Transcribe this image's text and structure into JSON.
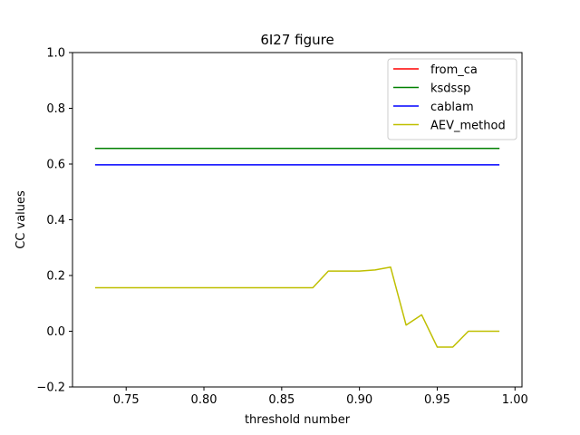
{
  "chart_data": {
    "type": "line",
    "title": "6I27 figure",
    "xlabel": "threshold number",
    "ylabel": "CC values",
    "xlim": [
      0.7155,
      1.0045
    ],
    "ylim": [
      -0.2,
      1.0
    ],
    "xticks": [
      0.75,
      0.8,
      0.85,
      0.9,
      0.95,
      1.0
    ],
    "xtick_labels": [
      "0.75",
      "0.80",
      "0.85",
      "0.90",
      "0.95",
      "1.00"
    ],
    "yticks": [
      -0.2,
      0.0,
      0.2,
      0.4,
      0.6,
      0.8,
      1.0
    ],
    "ytick_labels": [
      "−0.2",
      "0.0",
      "0.2",
      "0.4",
      "0.6",
      "0.8",
      "1.0"
    ],
    "grid": false,
    "legend_position": "top-right",
    "x": [
      0.73,
      0.74,
      0.75,
      0.76,
      0.77,
      0.78,
      0.79,
      0.8,
      0.81,
      0.82,
      0.83,
      0.84,
      0.85,
      0.86,
      0.87,
      0.88,
      0.89,
      0.9,
      0.91,
      0.92,
      0.93,
      0.94,
      0.95,
      0.96,
      0.97,
      0.98,
      0.99
    ],
    "series": [
      {
        "name": "from_ca",
        "color": "#ff0000",
        "values": [
          0.656,
          0.656,
          0.656,
          0.656,
          0.656,
          0.656,
          0.656,
          0.656,
          0.656,
          0.656,
          0.656,
          0.656,
          0.656,
          0.656,
          0.656,
          0.656,
          0.656,
          0.656,
          0.656,
          0.656,
          0.656,
          0.656,
          0.656,
          0.656,
          0.656,
          0.656,
          0.656
        ]
      },
      {
        "name": "ksdssp",
        "color": "#008000",
        "values": [
          0.656,
          0.656,
          0.656,
          0.656,
          0.656,
          0.656,
          0.656,
          0.656,
          0.656,
          0.656,
          0.656,
          0.656,
          0.656,
          0.656,
          0.656,
          0.656,
          0.656,
          0.656,
          0.656,
          0.656,
          0.656,
          0.656,
          0.656,
          0.656,
          0.656,
          0.656,
          0.656
        ]
      },
      {
        "name": "cablam",
        "color": "#0000ff",
        "values": [
          0.597,
          0.597,
          0.597,
          0.597,
          0.597,
          0.597,
          0.597,
          0.597,
          0.597,
          0.597,
          0.597,
          0.597,
          0.597,
          0.597,
          0.597,
          0.597,
          0.597,
          0.597,
          0.597,
          0.597,
          0.597,
          0.597,
          0.597,
          0.597,
          0.597,
          0.597,
          0.597
        ]
      },
      {
        "name": "AEV_method",
        "color": "#bfbf00",
        "values": [
          0.156,
          0.156,
          0.156,
          0.156,
          0.156,
          0.156,
          0.156,
          0.156,
          0.156,
          0.156,
          0.156,
          0.156,
          0.156,
          0.156,
          0.156,
          0.216,
          0.216,
          0.216,
          0.22,
          0.23,
          0.022,
          0.059,
          -0.057,
          -0.057,
          0.0,
          0.0,
          0.0
        ]
      }
    ]
  }
}
